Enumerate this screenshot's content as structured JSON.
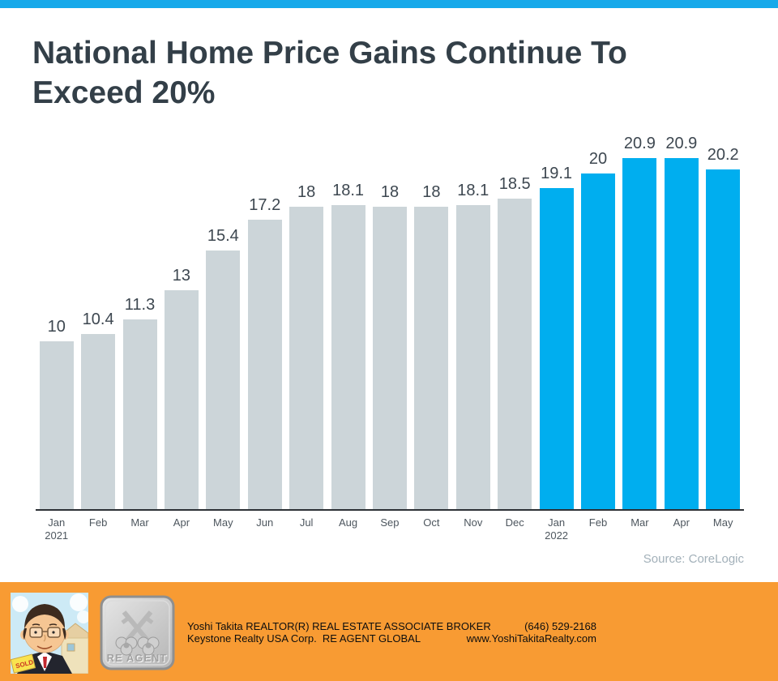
{
  "page": {
    "top_strip_color": "#17a9ea"
  },
  "header": {
    "title": "National Home Price Gains Continue To Exceed 20%"
  },
  "chart_data": {
    "type": "bar",
    "title": "National Home Price Gains Continue To Exceed 20%",
    "categories": [
      {
        "month": "Jan",
        "year": "2021"
      },
      {
        "month": "Feb"
      },
      {
        "month": "Mar"
      },
      {
        "month": "Apr"
      },
      {
        "month": "May"
      },
      {
        "month": "Jun"
      },
      {
        "month": "Jul"
      },
      {
        "month": "Aug"
      },
      {
        "month": "Sep"
      },
      {
        "month": "Oct"
      },
      {
        "month": "Nov"
      },
      {
        "month": "Dec"
      },
      {
        "month": "Jan",
        "year": "2022"
      },
      {
        "month": "Feb"
      },
      {
        "month": "Mar"
      },
      {
        "month": "Apr"
      },
      {
        "month": "May"
      }
    ],
    "values": [
      10,
      10.4,
      11.3,
      13,
      15.4,
      17.2,
      18,
      18.1,
      18,
      18,
      18.1,
      18.5,
      19.1,
      20,
      20.9,
      20.9,
      20.2
    ],
    "bar_colors": {
      "baseline": "#ccd5d9",
      "highlight": "#00aeef"
    },
    "highlight_start_index": 12,
    "ylim": [
      0,
      22
    ],
    "grid": false,
    "legend": false,
    "value_labels_shown": true,
    "source": "Source: CoreLogic"
  },
  "footer": {
    "band_color": "#f89b33",
    "line1_left": "Yoshi Takita REALTOR(R) REAL ESTATE ASSOCIATE BROKER",
    "line1_right": "(646) 529-2168",
    "line2_left": "Keystone Realty USA Corp.  RE AGENT GLOBAL",
    "line2_right": "www.YoshiTakitaRealty.com",
    "badge_label": "RE AGENT",
    "portrait_sign_text": "SOLD"
  }
}
